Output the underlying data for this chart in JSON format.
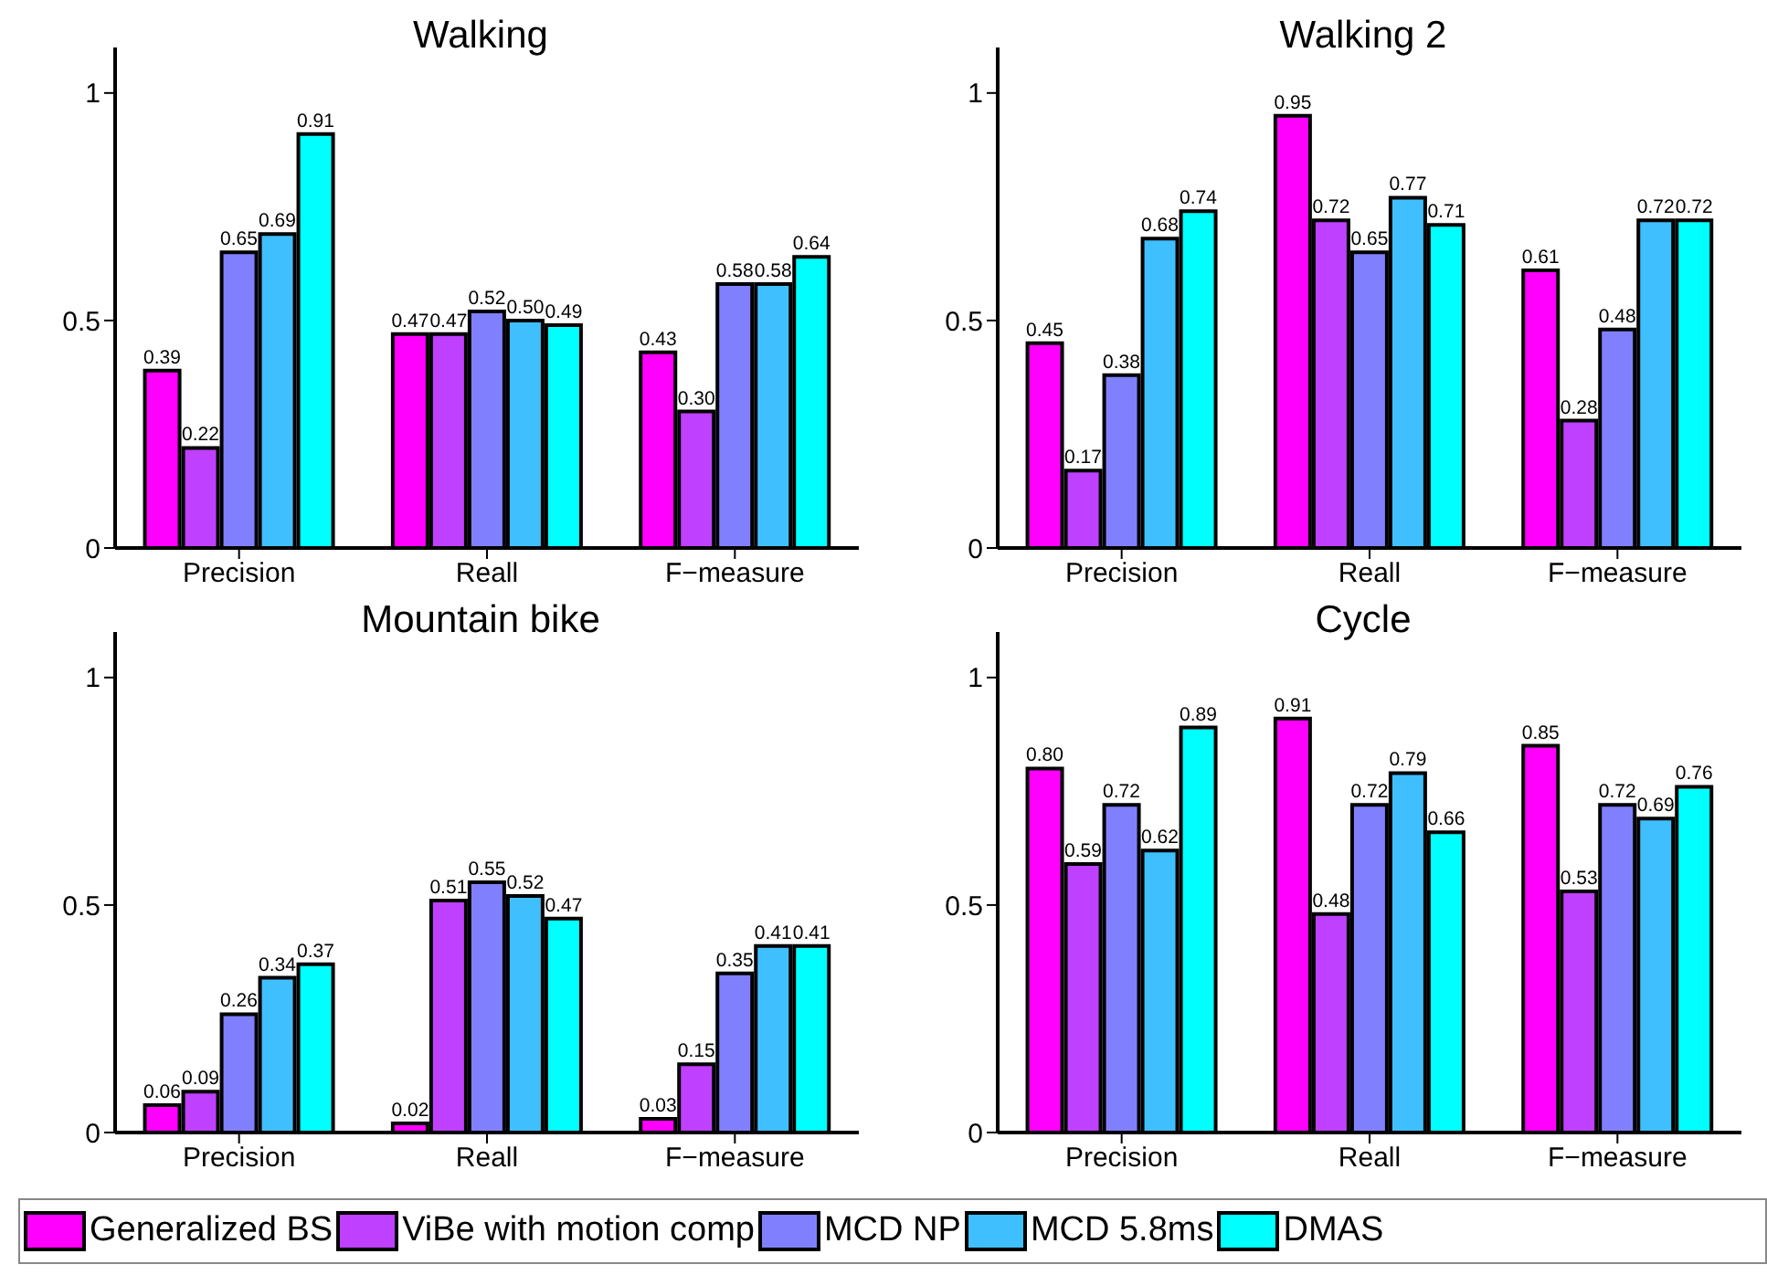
{
  "chart_data": [
    {
      "type": "bar",
      "title": "Walking",
      "categories": [
        "Precision",
        "Reall",
        "F−measure"
      ],
      "ylim": [
        0,
        1.1
      ],
      "yticks": [
        0,
        0.5,
        1
      ],
      "legend": "bottom",
      "series": [
        {
          "name": "Generalized BS",
          "color": "#ff00ff",
          "values": [
            0.39,
            0.47,
            0.43
          ],
          "value_labels": [
            "0.39",
            "0.47",
            "0.43"
          ]
        },
        {
          "name": "ViBe with motion comp",
          "color": "#bf40ff",
          "values": [
            0.22,
            0.47,
            0.3
          ],
          "value_labels": [
            "0.22",
            "0.47",
            "0.30"
          ]
        },
        {
          "name": "MCD NP",
          "color": "#8080ff",
          "values": [
            0.65,
            0.52,
            0.58
          ],
          "value_labels": [
            "0.65",
            "0.52",
            "0.58"
          ]
        },
        {
          "name": "MCD 5.8ms",
          "color": "#40bfff",
          "values": [
            0.69,
            0.5,
            0.58
          ],
          "value_labels": [
            "0.69",
            "0.50",
            "0.58"
          ]
        },
        {
          "name": "DMAS",
          "color": "#00ffff",
          "values": [
            0.91,
            0.49,
            0.64
          ],
          "value_labels": [
            "0.91",
            "0.49",
            "0.64"
          ]
        }
      ]
    },
    {
      "type": "bar",
      "title": "Walking 2",
      "categories": [
        "Precision",
        "Reall",
        "F−measure"
      ],
      "ylim": [
        0,
        1.1
      ],
      "yticks": [
        0,
        0.5,
        1
      ],
      "series": [
        {
          "color": "#ff00ff",
          "values": [
            0.45,
            0.95,
            0.61
          ],
          "value_labels": [
            "0.45",
            "0.95",
            "0.61"
          ]
        },
        {
          "color": "#bf40ff",
          "values": [
            0.17,
            0.72,
            0.28
          ],
          "value_labels": [
            "0.17",
            "0.72",
            "0.28"
          ]
        },
        {
          "color": "#8080ff",
          "values": [
            0.38,
            0.65,
            0.48
          ],
          "value_labels": [
            "0.38",
            "0.65",
            "0.48"
          ]
        },
        {
          "color": "#40bfff",
          "values": [
            0.68,
            0.77,
            0.72
          ],
          "value_labels": [
            "0.68",
            "0.77",
            "0.72"
          ]
        },
        {
          "color": "#00ffff",
          "values": [
            0.74,
            0.71,
            0.72
          ],
          "value_labels": [
            "0.74",
            "0.71",
            "0.72"
          ]
        }
      ]
    },
    {
      "type": "bar",
      "title": "Mountain bike",
      "categories": [
        "Precision",
        "Reall",
        "F−measure"
      ],
      "ylim": [
        0,
        1.1
      ],
      "yticks": [
        0,
        0.5,
        1
      ],
      "series": [
        {
          "color": "#ff00ff",
          "values": [
            0.06,
            0.02,
            0.03
          ],
          "value_labels": [
            "0.06",
            "0.02",
            "0.03"
          ]
        },
        {
          "color": "#bf40ff",
          "values": [
            0.09,
            0.51,
            0.15
          ],
          "value_labels": [
            "0.09",
            "0.51",
            "0.15"
          ]
        },
        {
          "color": "#8080ff",
          "values": [
            0.26,
            0.55,
            0.35
          ],
          "value_labels": [
            "0.26",
            "0.55",
            "0.35"
          ]
        },
        {
          "color": "#40bfff",
          "values": [
            0.34,
            0.52,
            0.41
          ],
          "value_labels": [
            "0.34",
            "0.52",
            "0.41"
          ]
        },
        {
          "color": "#00ffff",
          "values": [
            0.37,
            0.47,
            0.41
          ],
          "value_labels": [
            "0.37",
            "0.47",
            "0.41"
          ]
        }
      ]
    },
    {
      "type": "bar",
      "title": "Cycle",
      "categories": [
        "Precision",
        "Reall",
        "F−measure"
      ],
      "ylim": [
        0,
        1.1
      ],
      "yticks": [
        0,
        0.5,
        1
      ],
      "series": [
        {
          "color": "#ff00ff",
          "values": [
            0.8,
            0.91,
            0.85
          ],
          "value_labels": [
            "0.80",
            "0.91",
            "0.85"
          ]
        },
        {
          "color": "#bf40ff",
          "values": [
            0.59,
            0.48,
            0.53
          ],
          "value_labels": [
            "0.59",
            "0.48",
            "0.53"
          ]
        },
        {
          "color": "#8080ff",
          "values": [
            0.72,
            0.72,
            0.72
          ],
          "value_labels": [
            "0.72",
            "0.72",
            "0.72"
          ]
        },
        {
          "color": "#40bfff",
          "values": [
            0.62,
            0.79,
            0.69
          ],
          "value_labels": [
            "0.62",
            "0.79",
            "0.69"
          ]
        },
        {
          "color": "#00ffff",
          "values": [
            0.89,
            0.66,
            0.76
          ],
          "value_labels": [
            "0.89",
            "0.66",
            "0.76"
          ]
        }
      ]
    }
  ]
}
